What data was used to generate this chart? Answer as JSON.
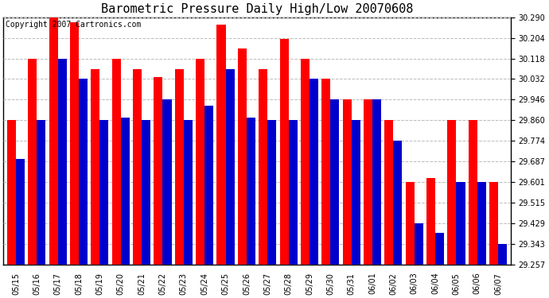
{
  "title": "Barometric Pressure Daily High/Low 20070608",
  "copyright": "Copyright 2007 Cartronics.com",
  "dates": [
    "05/15",
    "05/16",
    "05/17",
    "05/18",
    "05/19",
    "05/20",
    "05/21",
    "05/22",
    "05/23",
    "05/24",
    "05/25",
    "05/26",
    "05/27",
    "05/28",
    "05/29",
    "05/30",
    "05/31",
    "06/01",
    "06/02",
    "06/03",
    "06/04",
    "06/05",
    "06/06",
    "06/07"
  ],
  "highs": [
    29.86,
    30.118,
    30.29,
    30.27,
    30.075,
    30.118,
    30.075,
    30.04,
    30.075,
    30.118,
    30.26,
    30.16,
    30.075,
    30.2,
    30.118,
    30.032,
    29.946,
    29.946,
    29.86,
    29.601,
    29.62,
    29.86,
    29.86,
    29.601
  ],
  "lows": [
    29.7,
    29.86,
    30.118,
    30.032,
    29.86,
    29.87,
    29.86,
    29.946,
    29.86,
    29.92,
    30.075,
    29.87,
    29.86,
    29.86,
    30.032,
    29.946,
    29.86,
    29.946,
    29.774,
    29.429,
    29.39,
    29.601,
    29.601,
    29.343
  ],
  "bar_high_color": "#ff0000",
  "bar_low_color": "#0000cc",
  "bg_color": "#ffffff",
  "grid_color": "#bbbbbb",
  "title_fontsize": 11,
  "copyright_fontsize": 7,
  "ylim_min": 29.257,
  "ylim_max": 30.29,
  "yticks": [
    29.257,
    29.343,
    29.429,
    29.515,
    29.601,
    29.687,
    29.774,
    29.86,
    29.946,
    30.032,
    30.118,
    30.204,
    30.29
  ]
}
